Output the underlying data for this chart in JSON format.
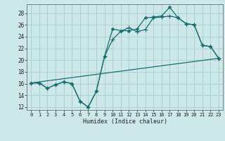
{
  "xlabel": "Humidex (Indice chaleur)",
  "background_color": "#cce8e8",
  "grid_color": "#aacccc",
  "line_color": "#1a6e6e",
  "xlim": [
    -0.5,
    23.5
  ],
  "ylim": [
    11.5,
    29.5
  ],
  "xticks": [
    0,
    1,
    2,
    3,
    4,
    5,
    6,
    7,
    8,
    9,
    10,
    11,
    12,
    13,
    14,
    15,
    16,
    17,
    18,
    19,
    20,
    21,
    22,
    23
  ],
  "yticks": [
    12,
    14,
    16,
    18,
    20,
    22,
    24,
    26,
    28
  ],
  "line1_x": [
    0,
    1,
    2,
    3,
    4,
    5,
    6,
    7,
    8,
    9,
    10,
    11,
    12,
    13,
    14,
    15,
    16,
    17,
    18,
    19,
    20,
    21,
    22,
    23
  ],
  "line1_y": [
    16.1,
    16.1,
    15.2,
    15.8,
    16.3,
    16.0,
    13.0,
    12.0,
    14.7,
    20.6,
    25.3,
    25.0,
    25.0,
    25.3,
    27.2,
    27.3,
    27.5,
    29.0,
    27.2,
    26.2,
    26.0,
    22.5,
    22.3,
    20.3
  ],
  "line2_x": [
    0,
    1,
    2,
    3,
    4,
    5,
    6,
    7,
    8,
    9,
    10,
    11,
    12,
    13,
    14,
    15,
    16,
    17,
    18,
    19,
    20,
    21,
    22,
    23
  ],
  "line2_y": [
    16.1,
    16.1,
    15.2,
    15.8,
    16.3,
    16.0,
    13.0,
    12.0,
    14.7,
    20.6,
    23.5,
    24.9,
    25.5,
    24.8,
    25.2,
    27.2,
    27.3,
    27.5,
    27.2,
    26.2,
    26.0,
    22.5,
    22.3,
    20.3
  ],
  "line3_x": [
    0,
    23
  ],
  "line3_y": [
    16.1,
    20.3
  ]
}
